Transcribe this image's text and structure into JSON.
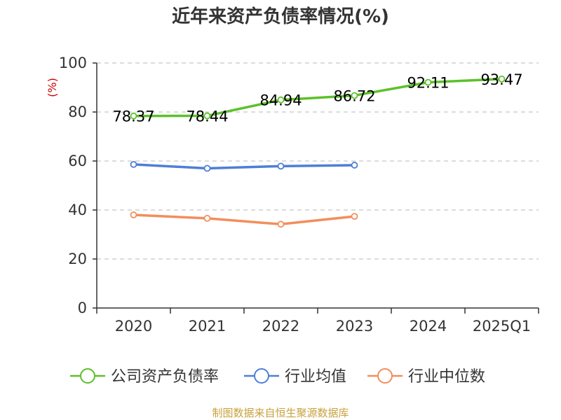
{
  "chart_data": {
    "type": "line",
    "title": "近年来资产负债率情况(%)",
    "ylabel": "(%)",
    "xlabel": "",
    "categories": [
      "2020",
      "2021",
      "2022",
      "2023",
      "2024",
      "2025Q1"
    ],
    "ylim": [
      0,
      100
    ],
    "yticks": [
      0,
      20,
      40,
      60,
      80,
      100
    ],
    "grid": true,
    "legend_position": "bottom",
    "series": [
      {
        "name": "公司资产负债率",
        "color": "#5cc12a",
        "values": [
          78.37,
          78.44,
          84.94,
          86.72,
          92.11,
          93.47
        ],
        "labels": [
          "78.37",
          "78.44",
          "84.94",
          "86.72",
          "92.11",
          "93.47"
        ]
      },
      {
        "name": "行业均值",
        "color": "#4e7fd6",
        "values": [
          58.6,
          57.0,
          57.9,
          58.3,
          null,
          null
        ]
      },
      {
        "name": "行业中位数",
        "color": "#f28e5c",
        "values": [
          38.0,
          36.6,
          34.2,
          37.4,
          null,
          null
        ]
      }
    ]
  },
  "footer": {
    "source": "制图数据来自恒生聚源数据库"
  }
}
